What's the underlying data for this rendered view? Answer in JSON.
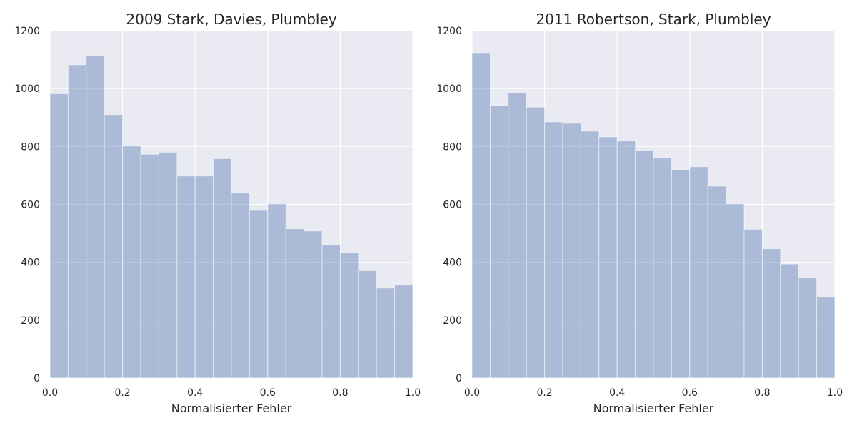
{
  "chart_data": [
    {
      "type": "bar",
      "title": "2009 Stark, Davies, Plumbley",
      "xlabel": "Normalisierter Fehler",
      "ylabel": "",
      "xlim": [
        0,
        1
      ],
      "ylim": [
        0,
        1200
      ],
      "bin_width": 0.05,
      "x": [
        0.0,
        0.05,
        0.1,
        0.15,
        0.2,
        0.25,
        0.3,
        0.35,
        0.4,
        0.45,
        0.5,
        0.55,
        0.6,
        0.65,
        0.7,
        0.75,
        0.8,
        0.85,
        0.9,
        0.95
      ],
      "values": [
        982,
        1082,
        1114,
        910,
        803,
        773,
        780,
        698,
        698,
        758,
        640,
        579,
        602,
        516,
        508,
        461,
        433,
        371,
        311,
        321
      ],
      "xticks": [
        "0.0",
        "0.2",
        "0.4",
        "0.6",
        "0.8",
        "1.0"
      ],
      "yticks": [
        "0",
        "200",
        "400",
        "600",
        "800",
        "1000",
        "1200"
      ],
      "grid": true,
      "bar_color": "#4c72b0"
    },
    {
      "type": "bar",
      "title": "2011 Robertson, Stark, Plumbley",
      "xlabel": "Normalisierter Fehler",
      "ylabel": "",
      "xlim": [
        0,
        1
      ],
      "ylim": [
        0,
        1200
      ],
      "bin_width": 0.05,
      "x": [
        0.0,
        0.05,
        0.1,
        0.15,
        0.2,
        0.25,
        0.3,
        0.35,
        0.4,
        0.45,
        0.5,
        0.55,
        0.6,
        0.65,
        0.7,
        0.75,
        0.8,
        0.85,
        0.9,
        0.95
      ],
      "values": [
        1124,
        941,
        986,
        936,
        885,
        880,
        853,
        833,
        819,
        785,
        760,
        720,
        730,
        663,
        602,
        514,
        447,
        394,
        346,
        280
      ],
      "xticks": [
        "0.0",
        "0.2",
        "0.4",
        "0.6",
        "0.8",
        "1.0"
      ],
      "yticks": [
        "0",
        "200",
        "400",
        "600",
        "800",
        "1000",
        "1200"
      ],
      "grid": true,
      "bar_color": "#4c72b0"
    }
  ]
}
